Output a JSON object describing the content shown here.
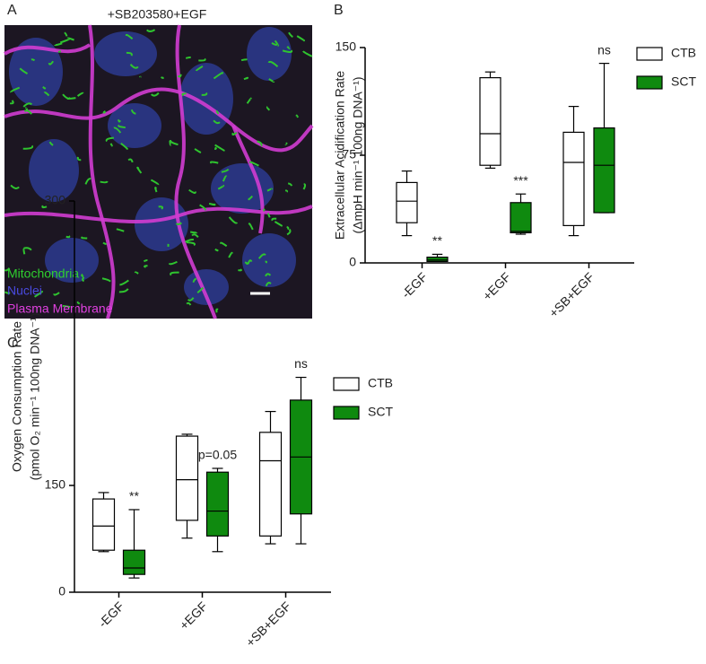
{
  "image": {
    "panel_label": "A",
    "title": "+SB203580+EGF",
    "legend": [
      "Mitochondria",
      "Nuclei",
      "Plasma Membrane"
    ]
  },
  "chart_data": [
    {
      "type": "box",
      "panel_label": "B",
      "ylabel": [
        "Extracellular Acidification Rate",
        "(ΔmpH min⁻¹ 100ng DNA⁻¹)"
      ],
      "categories": [
        "-EGF",
        "+EGF",
        "+SB+EGF"
      ],
      "ylim": [
        0,
        150
      ],
      "yticks": [
        0,
        75,
        150
      ],
      "series": [
        {
          "name": "CTB",
          "color": "#ffffff",
          "min": [
            19,
            66,
            19
          ],
          "q1": [
            28,
            68,
            26
          ],
          "median": [
            43,
            90,
            70
          ],
          "q3": [
            56,
            129,
            91
          ],
          "max": [
            64,
            133,
            109
          ]
        },
        {
          "name": "SCT",
          "color": "#0f8a0f",
          "min": [
            1,
            20,
            35
          ],
          "q1": [
            1,
            21,
            35
          ],
          "median": [
            2,
            22,
            68
          ],
          "q3": [
            4,
            42,
            94
          ],
          "max": [
            6,
            48,
            139
          ],
          "annotations": [
            "**",
            "***",
            "ns"
          ]
        }
      ]
    },
    {
      "type": "box",
      "panel_label": "C",
      "ylabel": [
        "Oxygen Consumption Rate",
        "(pmol O₂ min⁻¹ 100ng DNA⁻¹)"
      ],
      "categories": [
        "-EGF",
        "+EGF",
        "+SB+EGF"
      ],
      "ylim": [
        0,
        300
      ],
      "yticks": [
        0,
        150,
        300
      ],
      "series": [
        {
          "name": "CTB",
          "color": "#ffffff",
          "min": [
            57,
            76,
            68
          ],
          "q1": [
            59,
            101,
            79
          ],
          "median": [
            93,
            153,
            163
          ],
          "q3": [
            131,
            176,
            178
          ],
          "max": [
            140,
            177,
            189
          ]
        },
        {
          "name": "SCT",
          "color": "#0f8a0f",
          "min": [
            20,
            57,
            68
          ],
          "q1": [
            25,
            79,
            110
          ],
          "median": [
            34,
            114,
            165
          ],
          "q3": [
            59,
            157,
            195
          ],
          "max": [
            116,
            159,
            207
          ],
          "annotations": [
            "**",
            "p=0.05",
            "ns"
          ]
        }
      ]
    }
  ]
}
